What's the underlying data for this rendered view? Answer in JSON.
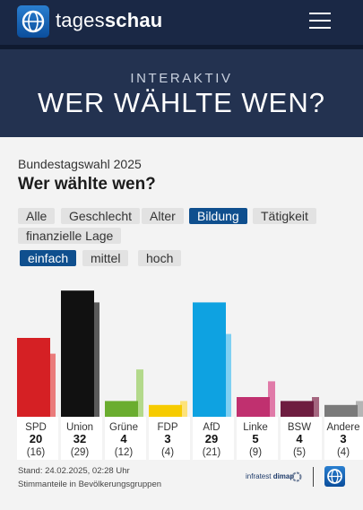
{
  "header": {
    "brand_regular": "tages",
    "brand_bold": "schau"
  },
  "hero": {
    "kicker": "INTERAKTIV",
    "title": "WER WÄHLTE WEN?"
  },
  "section": {
    "subtitle": "Bundestagswahl 2025",
    "title": "Wer wählte wen?"
  },
  "filters": {
    "categories": [
      "Alle",
      "Geschlecht",
      "Alter",
      "Bildung",
      "Tätigkeit",
      "finanzielle Lage"
    ],
    "active_category": "Bildung",
    "levels": [
      "einfach",
      "mittel",
      "hoch"
    ],
    "active_level": "einfach"
  },
  "chart_data": {
    "type": "bar",
    "categories": [
      "SPD",
      "Union",
      "Grüne",
      "FDP",
      "AfD",
      "Linke",
      "BSW",
      "Andere"
    ],
    "series": [
      {
        "values": [
          20,
          32,
          4,
          3,
          29,
          5,
          4,
          3
        ]
      },
      {
        "values": [
          16,
          29,
          12,
          4,
          21,
          9,
          5,
          4
        ]
      }
    ],
    "value_labels": [
      "20",
      "32",
      "4",
      "3",
      "29",
      "5",
      "4",
      "3"
    ],
    "prev_labels": [
      "(16)",
      "(29)",
      "(12)",
      "(4)",
      "(21)",
      "(9)",
      "(5)",
      "(4)"
    ],
    "colors": [
      "#d52024",
      "#111111",
      "#6aad2f",
      "#f6cb00",
      "#0ea2e1",
      "#c0306f",
      "#6e1d40",
      "#7a7a7a"
    ],
    "prev_colors": [
      "#ea7b7b",
      "#5a5a5a",
      "#b3d98b",
      "#fde27a",
      "#7fd0f2",
      "#e07aa8",
      "#a4667f",
      "#b5b5b5"
    ],
    "ylim": [
      0,
      32
    ]
  },
  "footer": {
    "stand": "Stand: 24.02.2025, 02:28 Uhr",
    "note": "Stimmanteile in Bevölkerungsgruppen",
    "source_regular": "infratest ",
    "source_bold": "dimap"
  },
  "icons": {
    "logo": "tagesschau-globe-icon",
    "menu": "hamburger-menu-icon",
    "source": "infratest-dimap-icon"
  }
}
